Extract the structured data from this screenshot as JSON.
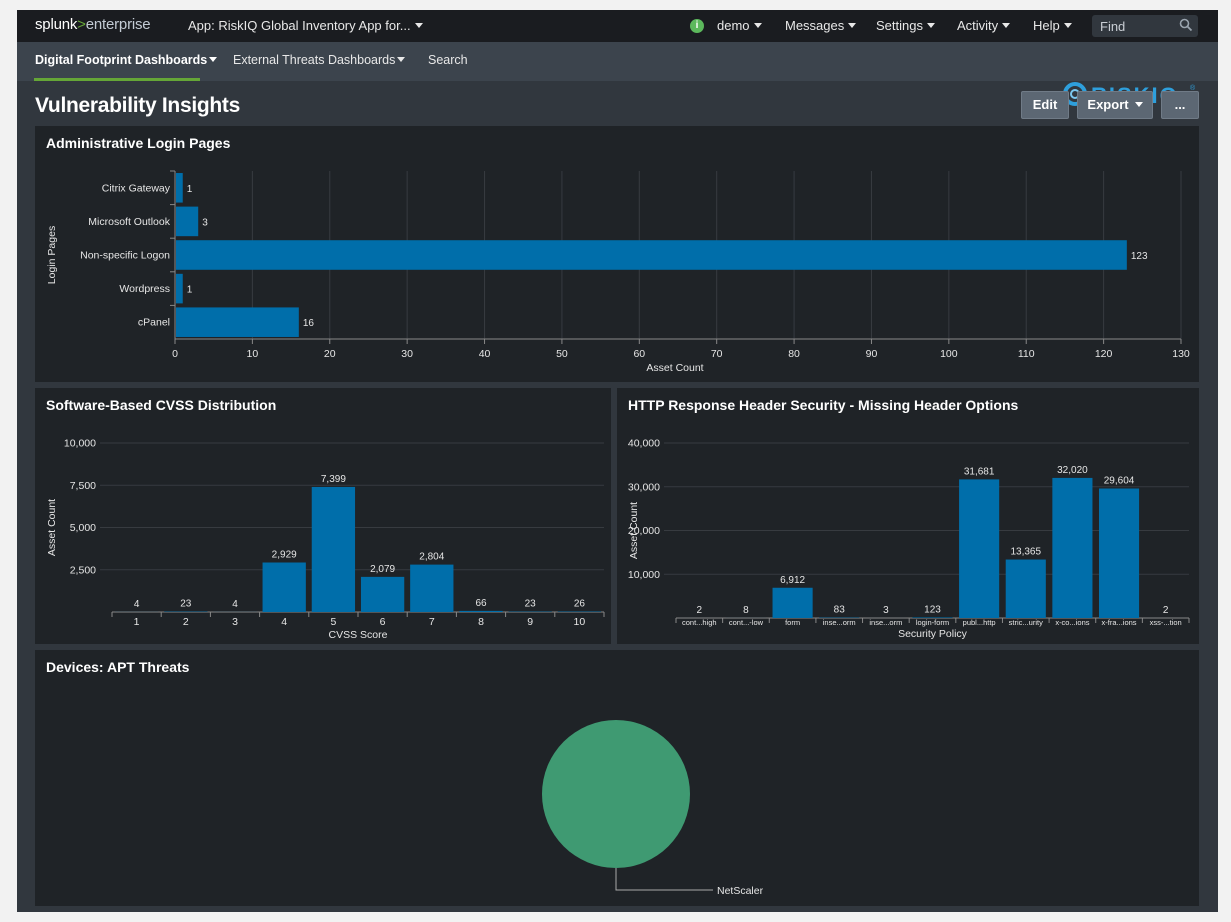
{
  "header": {
    "brand_left": "splunk",
    "brand_gt": ">",
    "brand_right": "enterprise",
    "app_label": "App: RiskIQ Global Inventory App for...",
    "user_badge": "i",
    "user": "demo",
    "messages": "Messages",
    "settings": "Settings",
    "activity": "Activity",
    "help": "Help",
    "find_placeholder": "Find"
  },
  "nav": {
    "items": [
      {
        "label": "Digital Footprint Dashboards"
      },
      {
        "label": "External Threats Dashboards"
      },
      {
        "label": "Search"
      }
    ],
    "logo_text": "RISKIQ",
    "logo_mark": "®"
  },
  "dashboard": {
    "title": "Vulnerability Insights",
    "edit_label": "Edit",
    "export_label": "Export",
    "more_label": "..."
  },
  "colors": {
    "bar": "#006eaa",
    "pie": "#3f9a72",
    "grid": "#373b40",
    "axis_text": "#e6e6e6"
  },
  "panels": {
    "login_title": "Administrative Login Pages",
    "cvss_title": "Software-Based CVSS Distribution",
    "http_title": "HTTP Response Header Security - Missing Header Options",
    "apt_title": "Devices: APT Threats"
  },
  "chart_data": [
    {
      "type": "bar",
      "orientation": "horizontal",
      "title": "Administrative Login Pages",
      "categories": [
        "Citrix Gateway",
        "Microsoft Outlook",
        "Non-specific Logon",
        "Wordpress",
        "cPanel"
      ],
      "values": [
        1,
        3,
        123,
        1,
        16
      ],
      "xlabel": "Asset Count",
      "ylabel": "Login Pages",
      "xlim": [
        0,
        130
      ],
      "xticks": [
        0,
        10,
        20,
        30,
        40,
        50,
        60,
        70,
        80,
        90,
        100,
        110,
        120,
        130
      ],
      "grid": true
    },
    {
      "type": "bar",
      "title": "Software-Based CVSS Distribution",
      "categories": [
        "1",
        "2",
        "3",
        "4",
        "5",
        "6",
        "7",
        "8",
        "9",
        "10"
      ],
      "values": [
        4,
        23,
        4,
        2929,
        7399,
        2079,
        2804,
        66,
        23,
        26
      ],
      "value_labels": [
        "4",
        "23",
        "4",
        "2,929",
        "7,399",
        "2,079",
        "2,804",
        "66",
        "23",
        "26"
      ],
      "xlabel": "CVSS Score",
      "ylabel": "Asset Count",
      "ylim": [
        0,
        10000
      ],
      "yticks": [
        "2,500",
        "5,000",
        "7,500",
        "10,000"
      ],
      "grid": true
    },
    {
      "type": "bar",
      "title": "HTTP Response Header Security - Missing Header Options",
      "categories": [
        "cont...high",
        "cont...-low",
        "form",
        "inse...orm",
        "inse...orm",
        "login-form",
        "publ...http",
        "stric...urity",
        "x-co...ions",
        "x-fra...ions",
        "xss-...tion"
      ],
      "values": [
        2,
        8,
        6912,
        83,
        3,
        123,
        31681,
        13365,
        32020,
        29604,
        2
      ],
      "value_labels": [
        "2",
        "8",
        "6,912",
        "83",
        "3",
        "123",
        "31,681",
        "13,365",
        "32,020",
        "29,604",
        "2"
      ],
      "xlabel": "Security Policy",
      "ylabel": "Asset Count",
      "ylim": [
        0,
        40000
      ],
      "yticks": [
        "10,000",
        "20,000",
        "30,000",
        "40,000"
      ],
      "grid": true
    },
    {
      "type": "pie",
      "title": "Devices: APT Threats",
      "labels": [
        "NetScaler"
      ],
      "values": [
        1
      ]
    }
  ]
}
